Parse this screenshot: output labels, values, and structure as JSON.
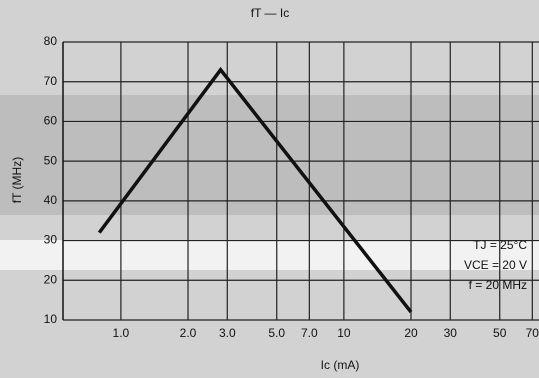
{
  "chart_data": {
    "type": "line",
    "title": "fT — Ic",
    "x_label": "Ic (mA)",
    "y_label": "fT (MHz)",
    "x": [
      0.8,
      2.8,
      20
    ],
    "series": [
      {
        "name": "fT",
        "color": "#111111",
        "values": [
          32,
          73,
          12
        ]
      }
    ],
    "xlim": [
      0.55,
      75
    ],
    "ylim": [
      10,
      80
    ],
    "log_x": true,
    "grid": true,
    "xticks": [
      {
        "value": 1,
        "label": "1.0"
      },
      {
        "value": 2,
        "label": "2.0"
      },
      {
        "value": 3,
        "label": "3.0"
      },
      {
        "value": 5,
        "label": "5.0"
      },
      {
        "value": 7,
        "label": "7.0"
      },
      10,
      20,
      30,
      50,
      70
    ],
    "yticks": [
      10,
      20,
      30,
      40,
      50,
      60,
      70,
      80
    ],
    "annotations": [
      "TJ = 25°C",
      "VCE = 20 V",
      "f = 20 MHz"
    ]
  }
}
